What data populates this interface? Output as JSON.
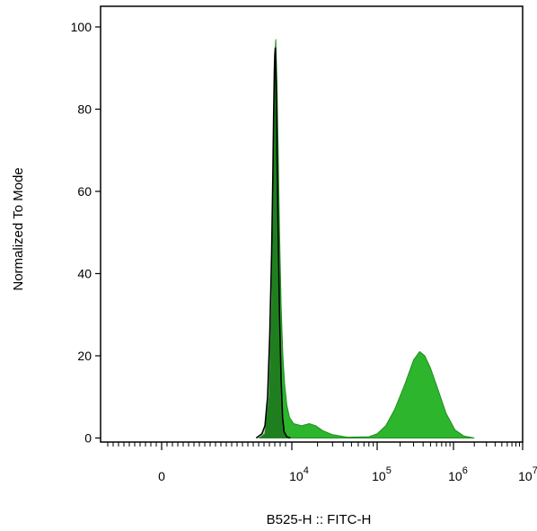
{
  "chart_data": {
    "type": "area",
    "xlabel": "B525-H :: FITC-H",
    "ylabel": "Normalized To Mode",
    "x_scale": "biexponential",
    "ylim": [
      0,
      100
    ],
    "y_ticks": [
      0,
      20,
      40,
      60,
      80,
      100
    ],
    "x_ticks": [
      {
        "label": "0",
        "sup": ""
      },
      {
        "label": "10",
        "sup": "4"
      },
      {
        "label": "10",
        "sup": "5"
      },
      {
        "label": "10",
        "sup": "6"
      },
      {
        "label": "10",
        "sup": "7"
      }
    ],
    "grid": false,
    "legend": "none",
    "colors": {
      "stained_fill": "#2db52d",
      "stained_stroke": "#1f8f1f",
      "control_fill": "#c8c8c8",
      "control_stroke": "#000000",
      "overlap_fill": "#1f7f1f"
    },
    "series": [
      {
        "points": [
          [
            1000,
            0
          ],
          [
            1500,
            1
          ],
          [
            2000,
            10
          ],
          [
            2400,
            30
          ],
          [
            2700,
            55
          ],
          [
            2900,
            78
          ],
          [
            3000,
            88
          ],
          [
            3100,
            95
          ],
          [
            3200,
            97
          ],
          [
            3300,
            94
          ],
          [
            3500,
            86
          ],
          [
            3800,
            70
          ],
          [
            4200,
            50
          ],
          [
            4700,
            32
          ],
          [
            5300,
            20
          ],
          [
            6000,
            13
          ],
          [
            7000,
            8
          ],
          [
            8500,
            5
          ],
          [
            10500,
            3.5
          ],
          [
            13000,
            3
          ],
          [
            16000,
            3.5
          ],
          [
            19000,
            3
          ],
          [
            23000,
            1.8
          ],
          [
            30000,
            0.8
          ],
          [
            45000,
            0.2
          ],
          [
            80000,
            0.3
          ],
          [
            100000,
            1
          ],
          [
            130000,
            3
          ],
          [
            170000,
            7
          ],
          [
            230000,
            13
          ],
          [
            300000,
            19
          ],
          [
            360000,
            21
          ],
          [
            420000,
            20
          ],
          [
            500000,
            17
          ],
          [
            620000,
            12
          ],
          [
            800000,
            6
          ],
          [
            1050000,
            2
          ],
          [
            1400000,
            0.5
          ],
          [
            2000000,
            0
          ]
        ]
      },
      {
        "points": [
          [
            800,
            0
          ],
          [
            1200,
            1
          ],
          [
            1500,
            3
          ],
          [
            1800,
            10
          ],
          [
            2100,
            25
          ],
          [
            2400,
            45
          ],
          [
            2600,
            63
          ],
          [
            2750,
            78
          ],
          [
            2900,
            89
          ],
          [
            3000,
            93
          ],
          [
            3100,
            95
          ],
          [
            3200,
            91
          ],
          [
            3350,
            82
          ],
          [
            3550,
            66
          ],
          [
            3800,
            50
          ],
          [
            4200,
            30
          ],
          [
            4700,
            14
          ],
          [
            5200,
            5
          ],
          [
            5800,
            1.5
          ],
          [
            7000,
            0.3
          ],
          [
            9000,
            0
          ]
        ]
      }
    ]
  }
}
